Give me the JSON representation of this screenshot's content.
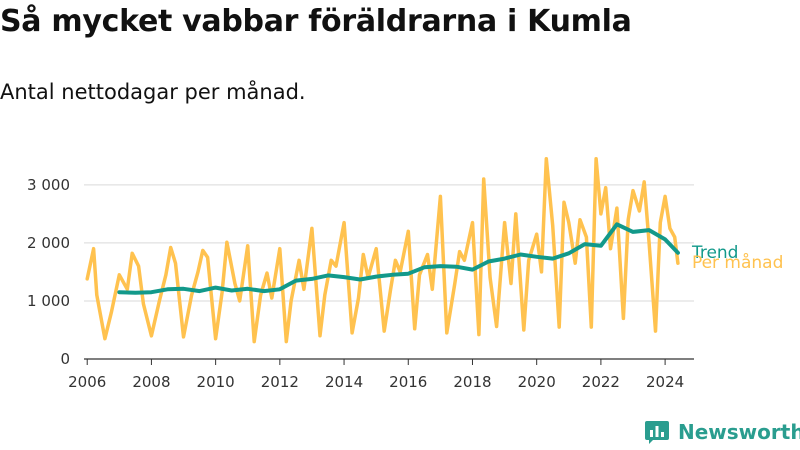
{
  "brand": {
    "name": "Newsworthy",
    "color": "#2a9d8f"
  },
  "chart_data": {
    "type": "line",
    "title": "Så mycket vabbar föräldrarna i Kumla",
    "subtitle": "Antal nettodagar per månad.",
    "xlabel": "",
    "ylabel": "",
    "xlim": [
      2005.9,
      2024.9
    ],
    "ylim": [
      0,
      3600
    ],
    "x_ticks": [
      2006,
      2008,
      2010,
      2012,
      2014,
      2016,
      2018,
      2020,
      2022,
      2024
    ],
    "x_tick_labels": [
      "2006",
      "2008",
      "2010",
      "2012",
      "2014",
      "2016",
      "2018",
      "2020",
      "2022",
      "2024"
    ],
    "y_ticks": [
      0,
      1000,
      2000,
      3000
    ],
    "y_tick_labels": [
      "0",
      "1 000",
      "2 000",
      "3 000"
    ],
    "grid": true,
    "legend": "end-of-line labels",
    "series": [
      {
        "name": "Trend",
        "color": "#12998a",
        "x": [
          2007.0,
          2007.5,
          2008.0,
          2008.5,
          2009.0,
          2009.5,
          2010.0,
          2010.5,
          2011.0,
          2011.5,
          2012.0,
          2012.5,
          2013.0,
          2013.5,
          2014.0,
          2014.5,
          2015.0,
          2015.5,
          2016.0,
          2016.5,
          2017.0,
          2017.5,
          2018.0,
          2018.5,
          2019.0,
          2019.5,
          2020.0,
          2020.5,
          2021.0,
          2021.5,
          2022.0,
          2022.5,
          2023.0,
          2023.5,
          2024.0,
          2024.4
        ],
        "values": [
          1150,
          1140,
          1150,
          1200,
          1210,
          1170,
          1230,
          1180,
          1210,
          1170,
          1200,
          1350,
          1380,
          1440,
          1410,
          1370,
          1420,
          1450,
          1470,
          1580,
          1600,
          1590,
          1540,
          1680,
          1730,
          1800,
          1760,
          1730,
          1820,
          1980,
          1950,
          2320,
          2190,
          2220,
          2060,
          1830
        ]
      },
      {
        "name": "Per månad",
        "color": "#ffc24f",
        "x": [
          2006.0,
          2006.2,
          2006.3,
          2006.55,
          2006.75,
          2007.0,
          2007.25,
          2007.4,
          2007.6,
          2007.75,
          2008.0,
          2008.25,
          2008.45,
          2008.6,
          2008.75,
          2009.0,
          2009.25,
          2009.45,
          2009.6,
          2009.75,
          2010.0,
          2010.2,
          2010.35,
          2010.6,
          2010.75,
          2011.0,
          2011.2,
          2011.4,
          2011.6,
          2011.75,
          2012.0,
          2012.2,
          2012.35,
          2012.6,
          2012.75,
          2013.0,
          2013.25,
          2013.4,
          2013.6,
          2013.75,
          2014.0,
          2014.25,
          2014.45,
          2014.6,
          2014.75,
          2015.0,
          2015.25,
          2015.45,
          2015.6,
          2015.75,
          2016.0,
          2016.2,
          2016.35,
          2016.6,
          2016.75,
          2017.0,
          2017.2,
          2017.45,
          2017.6,
          2017.75,
          2018.0,
          2018.2,
          2018.35,
          2018.55,
          2018.75,
          2019.0,
          2019.2,
          2019.35,
          2019.6,
          2019.75,
          2020.0,
          2020.15,
          2020.3,
          2020.5,
          2020.7,
          2020.85,
          2021.0,
          2021.2,
          2021.35,
          2021.55,
          2021.7,
          2021.85,
          2022.0,
          2022.15,
          2022.3,
          2022.5,
          2022.7,
          2022.85,
          2023.0,
          2023.2,
          2023.35,
          2023.5,
          2023.7,
          2023.85,
          2024.0,
          2024.15,
          2024.3,
          2024.4
        ],
        "values": [
          1380,
          1900,
          1100,
          350,
          800,
          1450,
          1200,
          1820,
          1600,
          950,
          400,
          1000,
          1450,
          1920,
          1650,
          380,
          1100,
          1500,
          1870,
          1750,
          350,
          1150,
          2010,
          1300,
          1000,
          1950,
          300,
          1100,
          1480,
          1050,
          1900,
          300,
          1000,
          1700,
          1200,
          2250,
          400,
          1100,
          1700,
          1600,
          2350,
          450,
          1050,
          1800,
          1400,
          1900,
          480,
          1200,
          1700,
          1500,
          2200,
          520,
          1450,
          1800,
          1200,
          2800,
          450,
          1300,
          1850,
          1700,
          2350,
          420,
          3100,
          1400,
          560,
          2350,
          1300,
          2500,
          500,
          1700,
          2150,
          1500,
          3450,
          2300,
          550,
          2700,
          2350,
          1650,
          2400,
          2100,
          550,
          3450,
          2500,
          2950,
          1900,
          2600,
          700,
          2400,
          2900,
          2550,
          3050,
          2000,
          480,
          2350,
          2800,
          2250,
          2100,
          1650
        ]
      }
    ]
  }
}
